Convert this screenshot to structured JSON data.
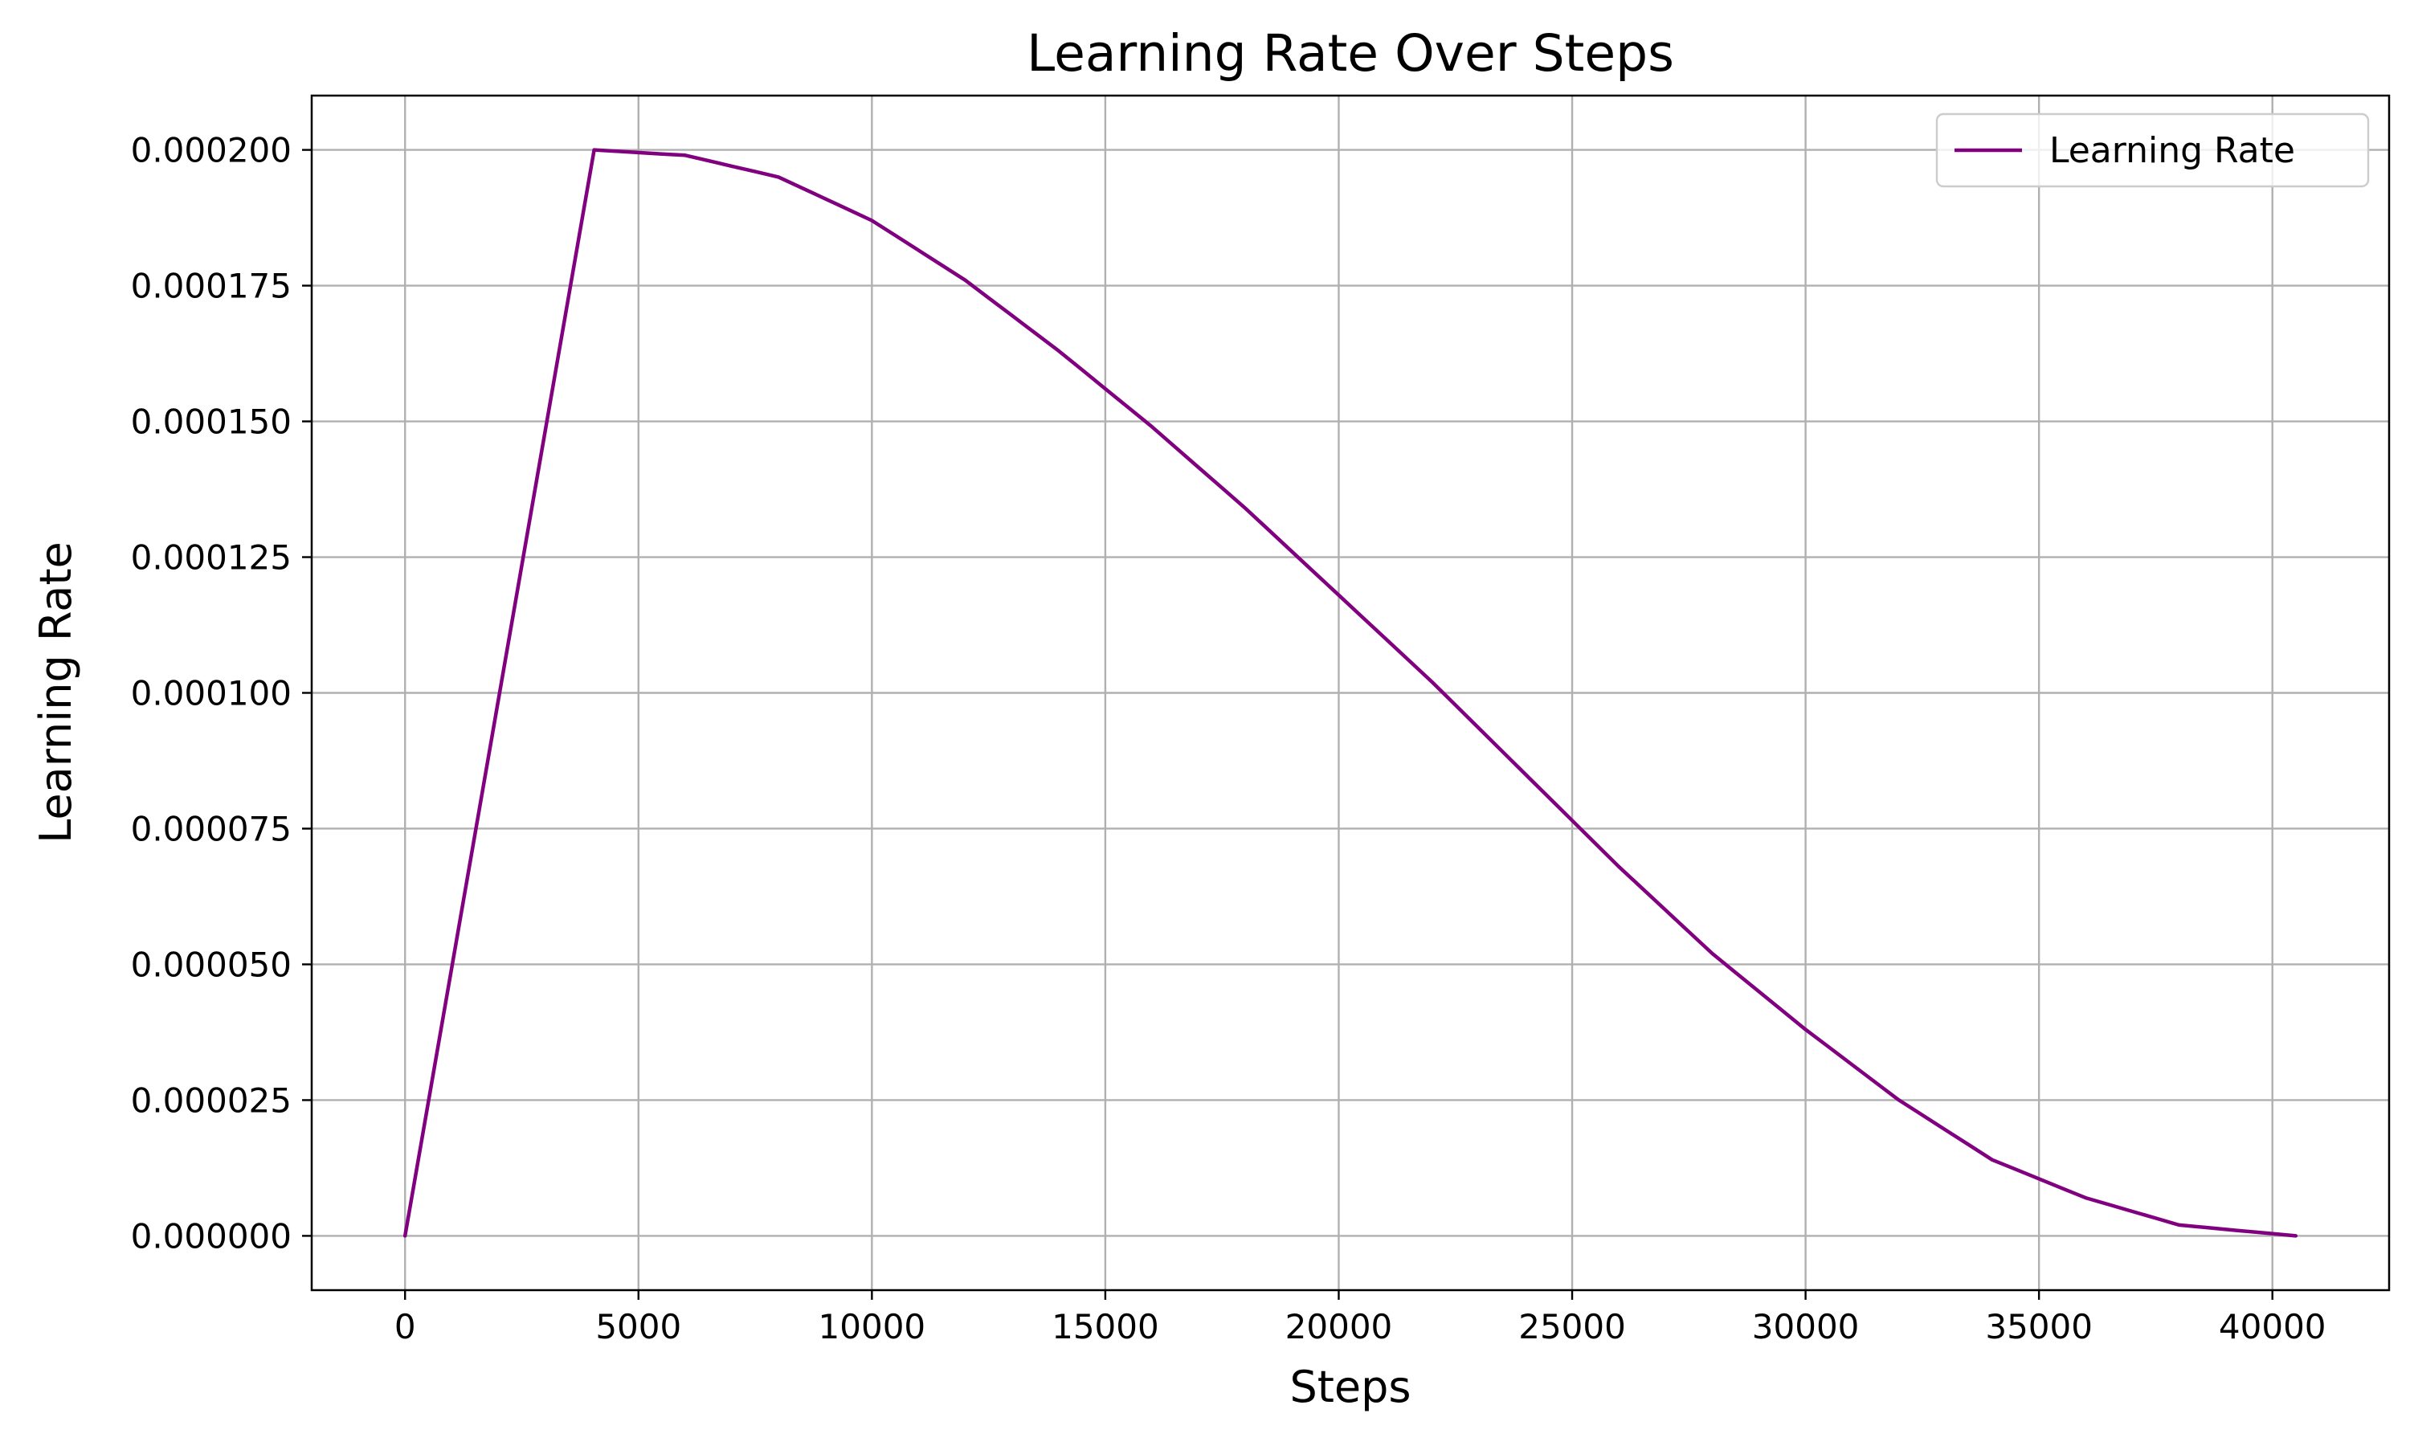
{
  "chart_data": {
    "type": "line",
    "title": "Learning Rate Over Steps",
    "xlabel": "Steps",
    "ylabel": "Learning Rate",
    "xlim": [
      -2000,
      42500
    ],
    "ylim": [
      -1e-05,
      0.00021
    ],
    "x_ticks": [
      0,
      5000,
      10000,
      15000,
      20000,
      25000,
      30000,
      35000,
      40000
    ],
    "x_tick_labels": [
      "0",
      "5000",
      "10000",
      "15000",
      "20000",
      "25000",
      "30000",
      "35000",
      "40000"
    ],
    "y_ticks": [
      0,
      2.5e-05,
      5e-05,
      7.5e-05,
      0.0001,
      0.000125,
      0.00015,
      0.000175,
      0.0002
    ],
    "y_tick_labels": [
      "0.000000",
      "0.000025",
      "0.000050",
      "0.000075",
      "0.000100",
      "0.000125",
      "0.000150",
      "0.000175",
      "0.000200"
    ],
    "grid": true,
    "legend_position": "top-right",
    "series": [
      {
        "name": "Learning Rate",
        "color": "#800080",
        "x": [
          0,
          4050,
          6000,
          8000,
          10000,
          12000,
          14000,
          16000,
          18000,
          20000,
          22000,
          24000,
          26000,
          28000,
          30000,
          32000,
          34000,
          36000,
          38000,
          40500
        ],
        "y": [
          0,
          0.0002,
          0.000199,
          0.000195,
          0.000187,
          0.000176,
          0.000163,
          0.000149,
          0.000134,
          0.000118,
          0.000102,
          8.5e-05,
          6.8e-05,
          5.2e-05,
          3.8e-05,
          2.5e-05,
          1.4e-05,
          7e-06,
          2e-06,
          0
        ]
      }
    ]
  }
}
